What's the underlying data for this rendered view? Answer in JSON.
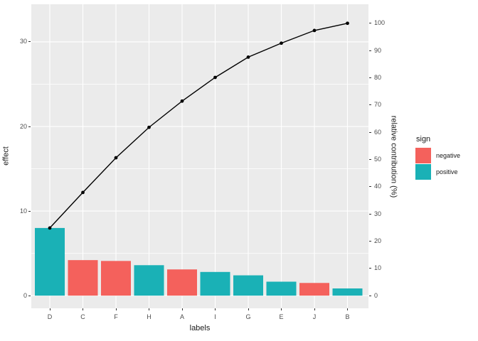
{
  "chart_data": {
    "type": "bar",
    "subtype": "pareto-with-cumulative-line",
    "title": "",
    "categories": [
      "D",
      "C",
      "F",
      "H",
      "A",
      "I",
      "G",
      "E",
      "J",
      "B"
    ],
    "series": [
      {
        "name": "effect",
        "type": "bar",
        "values": [
          8.0,
          4.2,
          4.1,
          3.6,
          3.1,
          2.8,
          2.4,
          1.65,
          1.5,
          0.85
        ],
        "signs": [
          "positive",
          "negative",
          "negative",
          "positive",
          "negative",
          "positive",
          "positive",
          "positive",
          "negative",
          "positive"
        ]
      },
      {
        "name": "relative contribution",
        "type": "line",
        "cumulative_percent": [
          24.8,
          37.9,
          50.6,
          61.8,
          71.4,
          80.1,
          87.6,
          92.7,
          97.4,
          100.0
        ]
      }
    ],
    "xlabel": "labels",
    "ylabel_left": "effect",
    "ylabel_right": "relative contribution (%)",
    "axes": {
      "left_ticks": [
        0,
        10,
        20,
        30
      ],
      "left_minor_ticks": [
        5,
        15,
        25
      ],
      "right_ticks": [
        0,
        10,
        20,
        30,
        40,
        50,
        60,
        70,
        80,
        90,
        100
      ],
      "ylim_left": [
        -1.5,
        34.45
      ],
      "grid": "white major and minor gridlines on gray panel"
    },
    "legend": {
      "title": "sign",
      "position": "right",
      "items": [
        {
          "label": "negative",
          "color": "#F4615C"
        },
        {
          "label": "positive",
          "color": "#1AB1B6"
        }
      ]
    },
    "colors": {
      "negative": "#F4615C",
      "positive": "#1AB1B6",
      "line": "#000000",
      "panel_bg": "#EBEBEB",
      "grid": "#FFFFFF",
      "axis_text": "#4D4D4D",
      "tick_mark": "#333333"
    }
  }
}
